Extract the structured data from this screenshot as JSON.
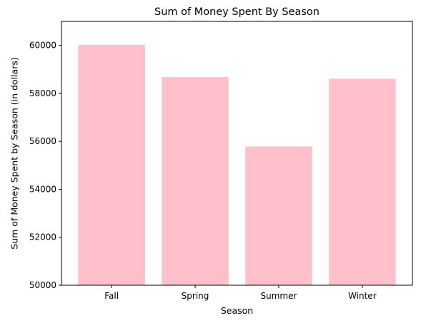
{
  "chart_data": {
    "type": "bar",
    "title": "Sum of Money Spent By Season",
    "xlabel": "Season",
    "ylabel": "Sum of Money Spent by Season (in dollars)",
    "categories": [
      "Fall",
      "Spring",
      "Summer",
      "Winter"
    ],
    "values": [
      60018,
      58679,
      55783,
      58607
    ],
    "ylim": [
      50000,
      61000
    ],
    "yticks": [
      50000,
      52000,
      54000,
      56000,
      58000,
      60000
    ],
    "bar_color": "#ffc0cb",
    "grid": false,
    "legend": "none"
  }
}
